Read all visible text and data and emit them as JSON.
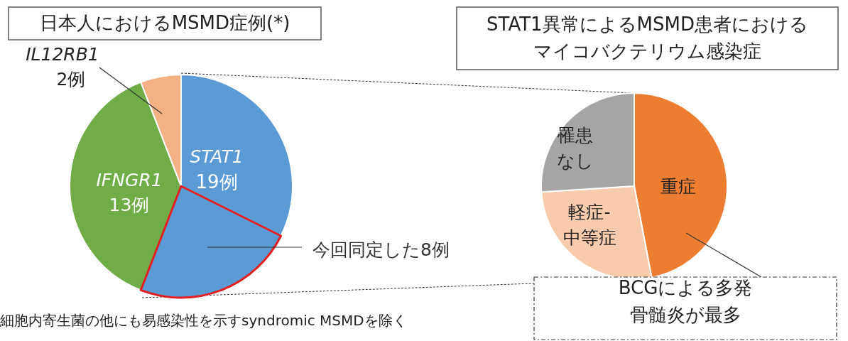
{
  "chart_data": [
    {
      "type": "pie",
      "title": "日本人におけるMSMD症例(*)",
      "categories": [
        "STAT1",
        "今回同定した8例",
        "IFNGR1",
        "IL12RB1"
      ],
      "values": [
        11,
        8,
        13,
        2
      ],
      "colors": [
        "#5b9bd5",
        "#5b9bd5",
        "#70ad47",
        "#f4b183"
      ],
      "value_labels": [
        null,
        null,
        "13例",
        "2例"
      ],
      "annotations": [
        "19例",
        "細胞内寄生菌の他にも易感染性を示すsyndromic MSMDを除く"
      ]
    },
    {
      "type": "pie",
      "title": "STAT1異常によるMSMD患者におけるマイコバクテリウム感染症",
      "categories": [
        "重症",
        "軽症-中等症",
        "罹患なし"
      ],
      "values": [
        47,
        27,
        26
      ],
      "colors": [
        "#ed7d31",
        "#f8cbad",
        "#a5a5a5"
      ],
      "annotations": [
        "BCGによる多発骨髄炎が最多"
      ]
    }
  ]
}
